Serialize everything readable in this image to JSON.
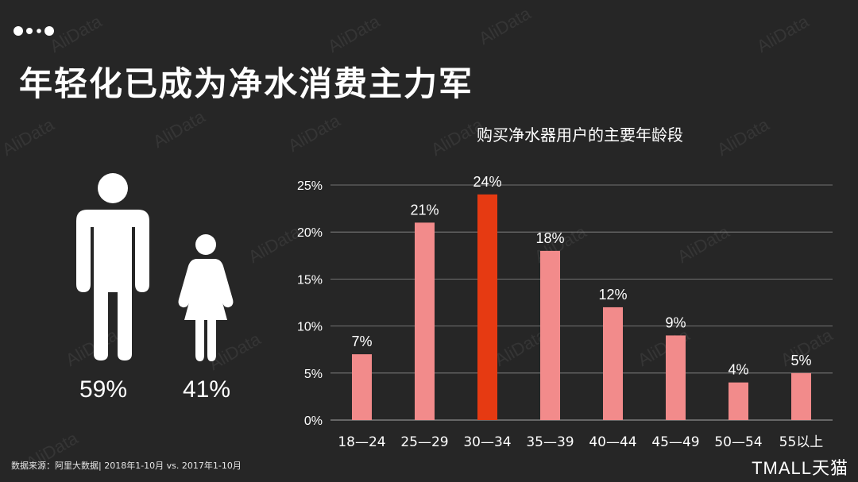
{
  "page": {
    "title": "年轻化已成为净水消费主力军",
    "watermark": "AliData",
    "footer_source": "数据来源：阿里大数据| 2018年1-10月 vs. 2017年1-10月",
    "brand": "TMALL天猫"
  },
  "gender": {
    "male_pct": "59%",
    "female_pct": "41%",
    "male_icon": "male-person-icon",
    "female_icon": "female-person-icon"
  },
  "colors": {
    "background": "#262626",
    "bar": "#f28b8b",
    "bar_highlight": "#e63a12",
    "grid": "#8c8c8c",
    "text": "#ffffff"
  },
  "chart_data": {
    "type": "bar",
    "title": "购买净水器用户的主要年龄段",
    "categories": [
      "18—24",
      "25—29",
      "30—34",
      "35—39",
      "40—44",
      "45—49",
      "50—54",
      "55以上"
    ],
    "values": [
      7,
      21,
      24,
      18,
      12,
      9,
      4,
      5
    ],
    "data_labels": [
      "7%",
      "21%",
      "24%",
      "18%",
      "12%",
      "9%",
      "4%",
      "5%"
    ],
    "highlight_index": 2,
    "ylim": [
      0,
      25
    ],
    "yticks": [
      0,
      5,
      10,
      15,
      20,
      25
    ],
    "ytick_labels": [
      "0%",
      "5%",
      "10%",
      "15%",
      "20%",
      "25%"
    ],
    "grid": true,
    "xlabel": "",
    "ylabel": ""
  }
}
